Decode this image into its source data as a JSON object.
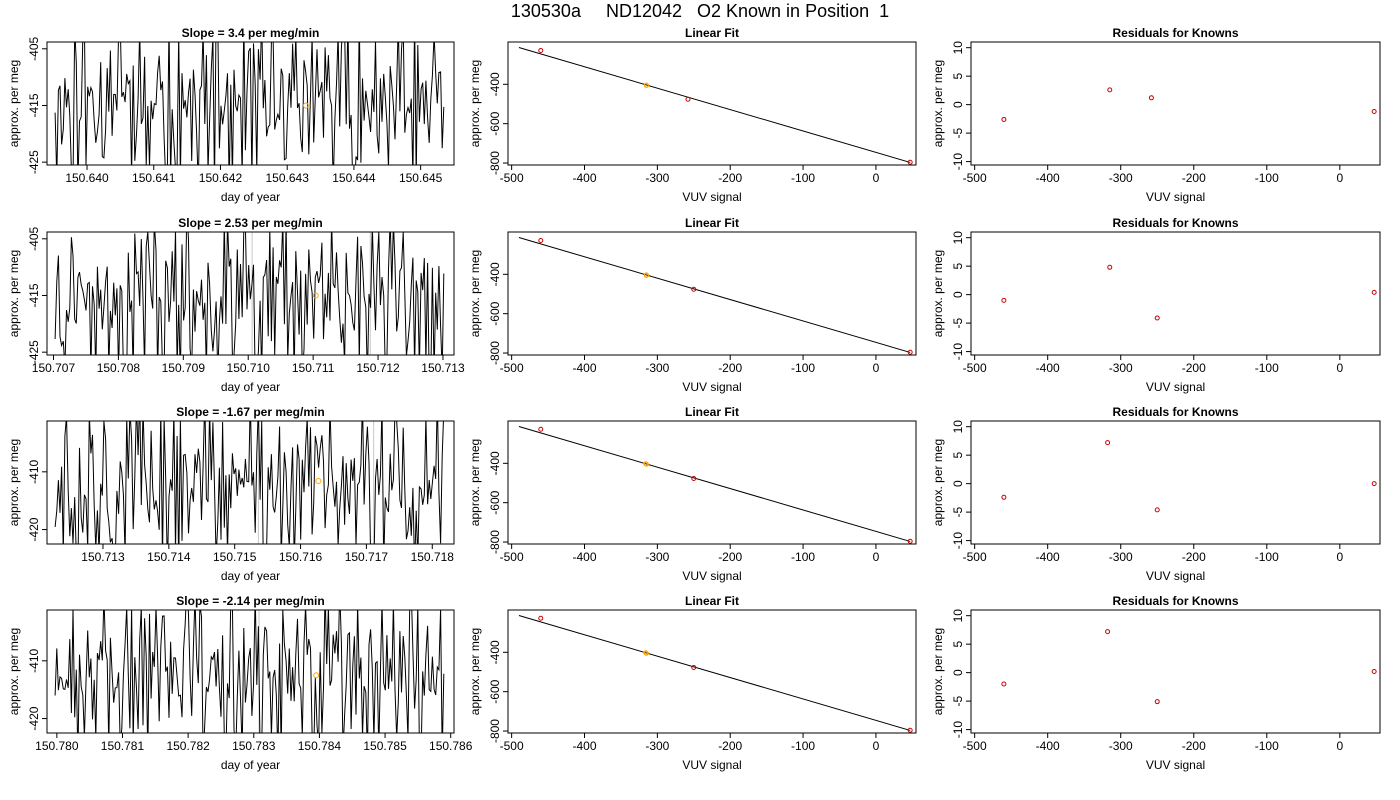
{
  "title": "130530a     ND12042   O2 Known in Position  1",
  "colors": {
    "trace": "#000000",
    "marker_orange": "#FFA500",
    "marker_red": "#CC0000",
    "faint_line": "#C8C8C8"
  },
  "chart_data": [
    {
      "type": "line",
      "title": "Slope =  3.4  per meg/min",
      "xlabel": "day of year",
      "ylabel": "approx. per meg",
      "xlim": [
        150.6394,
        150.6455
      ],
      "ylim": [
        -425.5,
        -403.8
      ],
      "xticks": [
        "150.640",
        "150.641",
        "150.642",
        "150.643",
        "150.644",
        "150.645"
      ],
      "xtick_values": [
        150.64,
        150.641,
        150.642,
        150.643,
        150.644,
        150.645
      ],
      "yticks": [
        "-405",
        "-415",
        "-425"
      ],
      "ytick_values": [
        -405,
        -415,
        -425
      ],
      "marker": {
        "x": 150.64328,
        "y": -415
      },
      "faint_lines_x": [],
      "seed": 11,
      "grid": false
    },
    {
      "type": "scatter",
      "title": "Linear Fit",
      "xlabel": "VUV signal",
      "ylabel": "approx. per meg",
      "xlim": [
        -505,
        55
      ],
      "ylim": [
        -810,
        -185
      ],
      "xticks": [
        "-500",
        "-400",
        "-300",
        "-200",
        "-100",
        "0"
      ],
      "xtick_values": [
        -500,
        -400,
        -300,
        -200,
        -100,
        0
      ],
      "yticks": [
        "-400",
        "-600",
        "-800"
      ],
      "ytick_values": [
        -400,
        -600,
        -800
      ],
      "points": [
        {
          "x": -460,
          "y": -228
        },
        {
          "x": -315,
          "y": -404
        },
        {
          "x": -315,
          "y": -406
        },
        {
          "x": -258,
          "y": -476
        },
        {
          "x": 47,
          "y": -796
        }
      ],
      "fit_line": [
        {
          "x": -490,
          "y": -213
        },
        {
          "x": 47,
          "y": -797
        }
      ],
      "grid": false
    },
    {
      "type": "scatter",
      "title": "Residuals for Knowns",
      "xlabel": "VUV signal",
      "ylabel": "approx. per meg",
      "xlim": [
        -505,
        55
      ],
      "ylim": [
        -10.6,
        11
      ],
      "xticks": [
        "-500",
        "-400",
        "-300",
        "-200",
        "-100",
        "0"
      ],
      "xtick_values": [
        -500,
        -400,
        -300,
        -200,
        -100,
        0
      ],
      "yticks": [
        "-10",
        "-5",
        "0",
        "5",
        "10"
      ],
      "ytick_values": [
        -10,
        -5,
        0,
        5,
        10
      ],
      "points": [
        {
          "x": -460,
          "y": -2.6
        },
        {
          "x": -315,
          "y": 2.6
        },
        {
          "x": -258,
          "y": 1.2
        },
        {
          "x": 47,
          "y": -1.2
        }
      ],
      "grid": false
    },
    {
      "type": "line",
      "title": "Slope =  2.53  per meg/min",
      "xlabel": "day of year",
      "ylabel": "approx. per meg",
      "xlim": [
        150.7069,
        150.71317
      ],
      "ylim": [
        -425.5,
        -403.8
      ],
      "xticks": [
        "150.707",
        "150.708",
        "150.709",
        "150.710",
        "150.711",
        "150.712",
        "150.713"
      ],
      "xtick_values": [
        150.707,
        150.708,
        150.709,
        150.71,
        150.711,
        150.712,
        150.713
      ],
      "yticks": [
        "-405",
        "-415",
        "-425"
      ],
      "ytick_values": [
        -405,
        -415,
        -425
      ],
      "marker": {
        "x": 150.71104,
        "y": -415
      },
      "faint_lines_x": [
        150.71006,
        150.71188
      ],
      "seed": 23,
      "grid": false
    },
    {
      "type": "scatter",
      "title": "Linear Fit",
      "xlabel": "VUV signal",
      "ylabel": "approx. per meg",
      "xlim": [
        -505,
        55
      ],
      "ylim": [
        -810,
        -185
      ],
      "xticks": [
        "-500",
        "-400",
        "-300",
        "-200",
        "-100",
        "0"
      ],
      "xtick_values": [
        -500,
        -400,
        -300,
        -200,
        -100,
        0
      ],
      "yticks": [
        "-400",
        "-600",
        "-800"
      ],
      "ytick_values": [
        -400,
        -600,
        -800
      ],
      "points": [
        {
          "x": -460,
          "y": -228
        },
        {
          "x": -315,
          "y": -403
        },
        {
          "x": -315,
          "y": -406
        },
        {
          "x": -250,
          "y": -476
        },
        {
          "x": 47,
          "y": -796
        }
      ],
      "fit_line": [
        {
          "x": -490,
          "y": -213
        },
        {
          "x": 47,
          "y": -797
        }
      ],
      "grid": false
    },
    {
      "type": "scatter",
      "title": "Residuals for Knowns",
      "xlabel": "VUV signal",
      "ylabel": "approx. per meg",
      "xlim": [
        -505,
        55
      ],
      "ylim": [
        -10.6,
        11
      ],
      "xticks": [
        "-500",
        "-400",
        "-300",
        "-200",
        "-100",
        "0"
      ],
      "xtick_values": [
        -500,
        -400,
        -300,
        -200,
        -100,
        0
      ],
      "yticks": [
        "-10",
        "-5",
        "0",
        "5",
        "10"
      ],
      "ytick_values": [
        -10,
        -5,
        0,
        5,
        10
      ],
      "points": [
        {
          "x": -460,
          "y": -1.0
        },
        {
          "x": -315,
          "y": 4.8
        },
        {
          "x": -250,
          "y": -4.1
        },
        {
          "x": 47,
          "y": 0.4
        }
      ],
      "grid": false
    },
    {
      "type": "line",
      "title": "Slope =  -1.67  per meg/min",
      "xlabel": "day of year",
      "ylabel": "approx. per meg",
      "xlim": [
        150.71215,
        150.71833
      ],
      "ylim": [
        -422.5,
        -401.2
      ],
      "xticks": [
        "150.713",
        "150.714",
        "150.715",
        "150.716",
        "150.717",
        "150.718"
      ],
      "xtick_values": [
        150.713,
        150.714,
        150.715,
        150.716,
        150.717,
        150.718
      ],
      "yticks": [
        "-410",
        "-420"
      ],
      "ytick_values": [
        -410,
        -420
      ],
      "marker": {
        "x": 150.71627,
        "y": -411.6
      },
      "faint_lines_x": [
        150.71536,
        150.71711
      ],
      "seed": 37,
      "grid": false
    },
    {
      "type": "scatter",
      "title": "Linear Fit",
      "xlabel": "VUV signal",
      "ylabel": "approx. per meg",
      "xlim": [
        -505,
        55
      ],
      "ylim": [
        -810,
        -185
      ],
      "xticks": [
        "-500",
        "-400",
        "-300",
        "-200",
        "-100",
        "0"
      ],
      "xtick_values": [
        -500,
        -400,
        -300,
        -200,
        -100,
        0
      ],
      "yticks": [
        "-400",
        "-600",
        "-800"
      ],
      "ytick_values": [
        -400,
        -600,
        -800
      ],
      "points": [
        {
          "x": -460,
          "y": -227
        },
        {
          "x": -316,
          "y": -402
        },
        {
          "x": -315,
          "y": -405
        },
        {
          "x": -250,
          "y": -477
        },
        {
          "x": 47,
          "y": -796
        }
      ],
      "fit_line": [
        {
          "x": -490,
          "y": -213
        },
        {
          "x": 47,
          "y": -797
        }
      ],
      "grid": false
    },
    {
      "type": "scatter",
      "title": "Residuals for Knowns",
      "xlabel": "VUV signal",
      "ylabel": "approx. per meg",
      "xlim": [
        -505,
        55
      ],
      "ylim": [
        -10.6,
        11
      ],
      "xticks": [
        "-500",
        "-400",
        "-300",
        "-200",
        "-100",
        "0"
      ],
      "xtick_values": [
        -500,
        -400,
        -300,
        -200,
        -100,
        0
      ],
      "yticks": [
        "-10",
        "-5",
        "0",
        "5",
        "10"
      ],
      "ytick_values": [
        -10,
        -5,
        0,
        5,
        10
      ],
      "points": [
        {
          "x": -460,
          "y": -2.4
        },
        {
          "x": -318,
          "y": 7.2
        },
        {
          "x": -250,
          "y": -4.6
        },
        {
          "x": 47,
          "y": 0.0
        }
      ],
      "grid": false
    },
    {
      "type": "line",
      "title": "Slope =  -2.14  per meg/min",
      "xlabel": "day of year",
      "ylabel": "approx. per meg",
      "xlim": [
        150.77985,
        150.78605
      ],
      "ylim": [
        -422.5,
        -401.2
      ],
      "xticks": [
        "150.780",
        "150.781",
        "150.782",
        "150.783",
        "150.784",
        "150.785",
        "150.786"
      ],
      "xtick_values": [
        150.78,
        150.781,
        150.782,
        150.783,
        150.784,
        150.785,
        150.786
      ],
      "yticks": [
        "-410",
        "-420"
      ],
      "ytick_values": [
        -410,
        -420
      ],
      "marker": {
        "x": 150.78395,
        "y": -412.5
      },
      "faint_lines_x": [
        150.78308
      ],
      "seed": 53,
      "grid": false
    },
    {
      "type": "scatter",
      "title": "Linear Fit",
      "xlabel": "VUV signal",
      "ylabel": "approx. per meg",
      "xlim": [
        -505,
        55
      ],
      "ylim": [
        -810,
        -185
      ],
      "xticks": [
        "-500",
        "-400",
        "-300",
        "-200",
        "-100",
        "0"
      ],
      "xtick_values": [
        -500,
        -400,
        -300,
        -200,
        -100,
        0
      ],
      "yticks": [
        "-400",
        "-600",
        "-800"
      ],
      "ytick_values": [
        -400,
        -600,
        -800
      ],
      "points": [
        {
          "x": -460,
          "y": -227
        },
        {
          "x": -316,
          "y": -402
        },
        {
          "x": -315,
          "y": -405
        },
        {
          "x": -250,
          "y": -477
        },
        {
          "x": 47,
          "y": -796
        }
      ],
      "fit_line": [
        {
          "x": -490,
          "y": -213
        },
        {
          "x": 47,
          "y": -797
        }
      ],
      "grid": false
    },
    {
      "type": "scatter",
      "title": "Residuals for Knowns",
      "xlabel": "VUV signal",
      "ylabel": "approx. per meg",
      "xlim": [
        -505,
        55
      ],
      "ylim": [
        -10.6,
        11
      ],
      "xticks": [
        "-500",
        "-400",
        "-300",
        "-200",
        "-100",
        "0"
      ],
      "xtick_values": [
        -500,
        -400,
        -300,
        -200,
        -100,
        0
      ],
      "yticks": [
        "-10",
        "-5",
        "0",
        "5",
        "10"
      ],
      "ytick_values": [
        -10,
        -5,
        0,
        5,
        10
      ],
      "points": [
        {
          "x": -460,
          "y": -2.0
        },
        {
          "x": -318,
          "y": 7.2
        },
        {
          "x": -250,
          "y": -5.1
        },
        {
          "x": 47,
          "y": 0.2
        }
      ],
      "grid": false
    }
  ]
}
